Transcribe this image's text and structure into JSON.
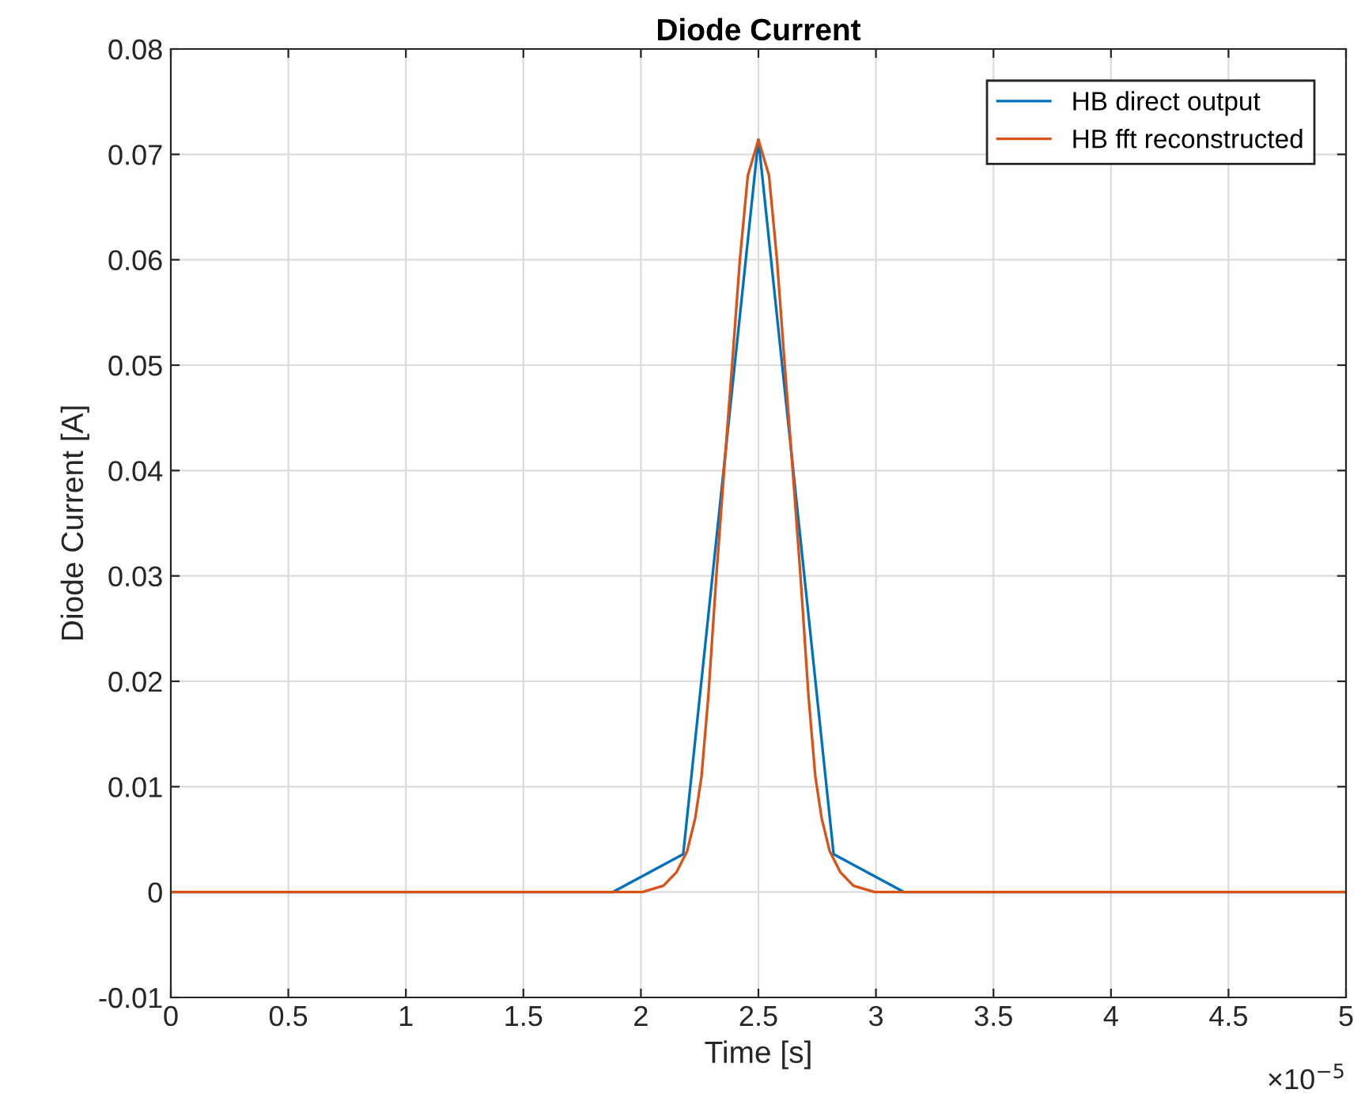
{
  "chart_data": {
    "type": "line",
    "title": "Diode Current",
    "xlabel": "Time [s]",
    "ylabel": "Diode Current [A]",
    "annotations": [
      "×10$^{−5}$"
    ],
    "xlim": [
      0,
      5
    ],
    "xticks": [
      0,
      0.5,
      1,
      1.5,
      2,
      2.5,
      3,
      3.5,
      4,
      4.5,
      5
    ],
    "ylim": [
      -0.01,
      0.08
    ],
    "yticks": [
      {
        "value": -0.01,
        "label": "-0.01"
      },
      0,
      0.01,
      0.02,
      0.03,
      0.04,
      0.05,
      0.06,
      0.07,
      0.08
    ],
    "grid": true,
    "legend": "top right",
    "series": [
      {
        "name": "HB direct output",
        "color": "#0072bd",
        "x": [
          0,
          1.88,
          2.18,
          2.5,
          2.82,
          3.12,
          5
        ],
        "values": [
          0,
          0,
          0.0036,
          0.0714,
          0.0036,
          0,
          0
        ]
      },
      {
        "name": "HB fft reconstructed",
        "color": "#d95319",
        "x": [
          0,
          2.006,
          2.096,
          2.152,
          2.197,
          2.231,
          2.258,
          2.287,
          2.321,
          2.354,
          2.388,
          2.421,
          2.455,
          2.5,
          2.545,
          2.579,
          2.612,
          2.646,
          2.679,
          2.713,
          2.742,
          2.769,
          2.803,
          2.848,
          2.904,
          2.994,
          5
        ],
        "values": [
          0,
          0,
          0.0006,
          0.0019,
          0.0039,
          0.007,
          0.011,
          0.0186,
          0.03,
          0.04,
          0.05,
          0.06,
          0.068,
          0.0714,
          0.068,
          0.06,
          0.05,
          0.04,
          0.03,
          0.0186,
          0.011,
          0.007,
          0.0039,
          0.0019,
          0.0006,
          0,
          0
        ]
      }
    ]
  }
}
